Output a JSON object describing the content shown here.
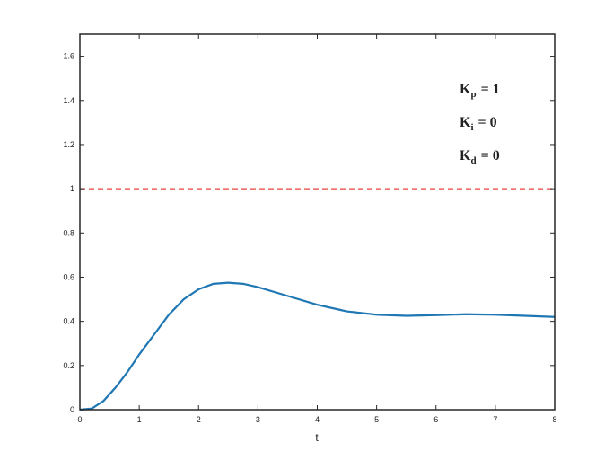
{
  "chart_data": {
    "type": "line",
    "xlabel": "t",
    "xlim": [
      0,
      8
    ],
    "xticks": [
      0,
      1,
      2,
      3,
      4,
      5,
      6,
      7,
      8
    ],
    "ylim": [
      0,
      1.7
    ],
    "yticks": [
      0,
      0.2,
      0.4,
      0.6,
      0.8,
      1,
      1.2,
      1.4,
      1.6
    ],
    "grid": false,
    "box": true,
    "series": [
      {
        "color": "#1f77b4",
        "dash": false,
        "x": [
          0,
          0.2,
          0.4,
          0.6,
          0.8,
          1,
          1.25,
          1.5,
          1.75,
          2,
          2.25,
          2.5,
          2.75,
          3,
          3.5,
          4,
          4.5,
          5,
          5.5,
          6,
          6.5,
          7,
          7.5,
          8
        ],
        "values": [
          0,
          0.005,
          0.04,
          0.1,
          0.17,
          0.25,
          0.34,
          0.43,
          0.5,
          0.545,
          0.57,
          0.575,
          0.57,
          0.555,
          0.515,
          0.475,
          0.445,
          0.43,
          0.425,
          0.428,
          0.432,
          0.43,
          0.425,
          0.42
        ]
      },
      {
        "color": "#e8433a",
        "dash": true,
        "x": [
          0,
          8
        ],
        "values": [
          1,
          1
        ]
      }
    ],
    "annotations": [
      {
        "base": "K",
        "sub": "p",
        "rest": "= 1"
      },
      {
        "base": "K",
        "sub": "i",
        "rest": "= 0"
      },
      {
        "base": "K",
        "sub": "d",
        "rest": "= 0"
      }
    ]
  }
}
